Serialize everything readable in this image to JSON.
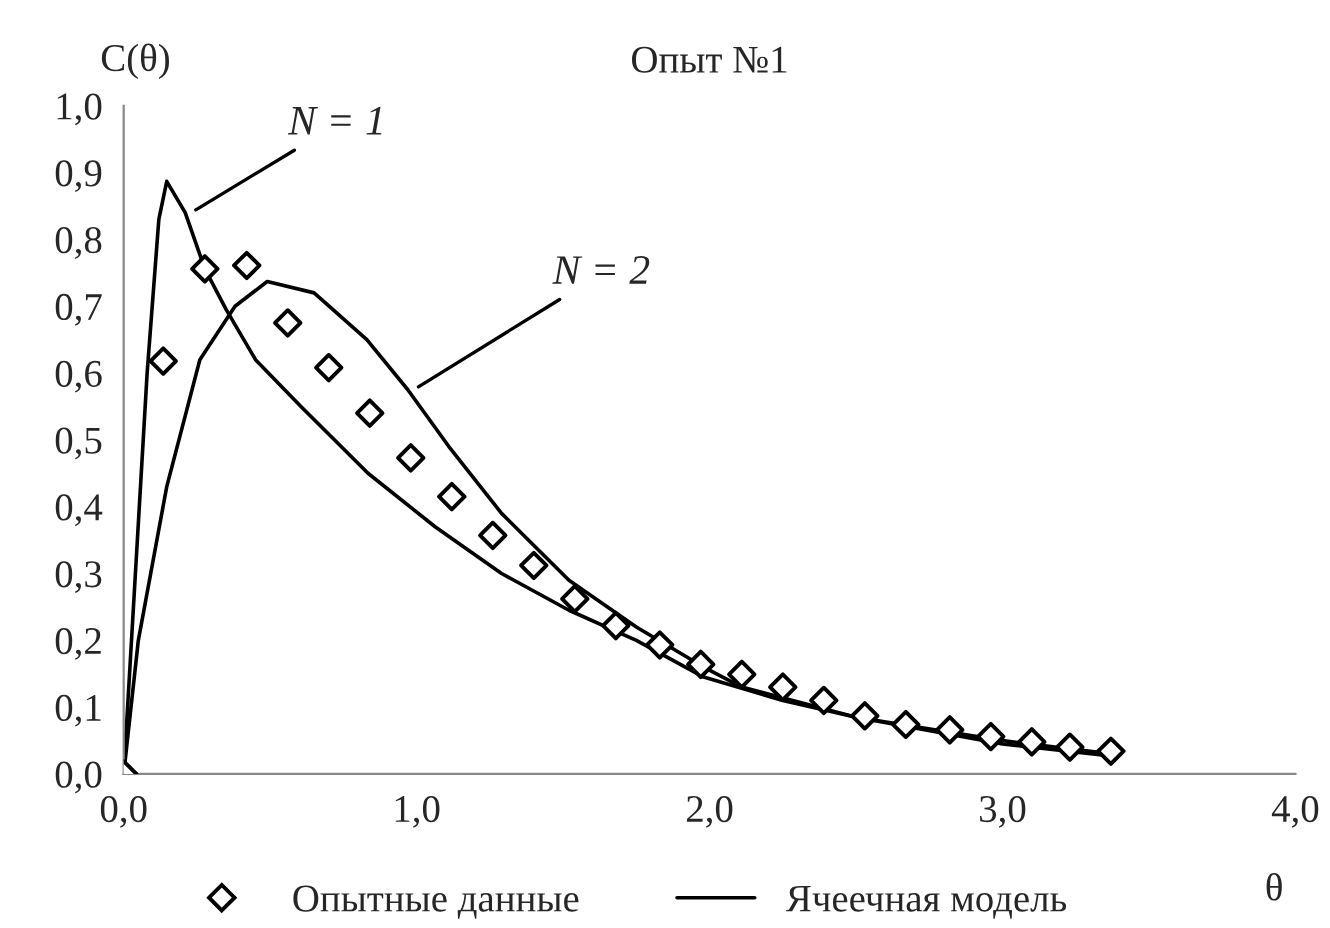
{
  "chart_data": {
    "type": "scatter",
    "title": "Опыт №1",
    "ylabel": "C(θ)",
    "xlabel": "θ",
    "series": [
      {
        "name": "Опытные данные",
        "color": "#000000",
        "marker": "diamond",
        "x": [
          0,
          0.135,
          0.277,
          0.42,
          0.56,
          0.7,
          0.84,
          0.98,
          1.12,
          1.26,
          1.4,
          1.54,
          1.68,
          1.83,
          1.97,
          2.11,
          2.25,
          2.39,
          2.53,
          2.67,
          2.82,
          2.96,
          3.1,
          3.23,
          3.37
        ],
        "values": [
          0,
          0.618,
          0.756,
          0.761,
          0.675,
          0.608,
          0.54,
          0.473,
          0.415,
          0.357,
          0.312,
          0.262,
          0.222,
          0.193,
          0.164,
          0.149,
          0.13,
          0.11,
          0.087,
          0.074,
          0.066,
          0.056,
          0.048,
          0.04,
          0.034
        ]
      },
      {
        "name": "Ячеечная модель",
        "type": "line",
        "color": "#000000",
        "marker": "none",
        "line_style": "solid",
        "x": [
          0,
          0.04,
          0.08,
          0.12,
          0.147,
          0.21,
          0.277,
          0.35,
          0.45,
          0.605,
          0.834,
          1.063,
          1.29,
          1.52,
          1.75,
          1.98,
          2.25,
          2.5,
          3.0,
          3.37
        ],
        "values": [
          0,
          0.3,
          0.6,
          0.83,
          0.887,
          0.84,
          0.756,
          0.695,
          0.62,
          0.55,
          0.45,
          0.37,
          0.3,
          0.245,
          0.2,
          0.145,
          0.11,
          0.085,
          0.045,
          0.027
        ]
      },
      {
        "type": "line",
        "color": "#000000",
        "marker": "none",
        "line_style": "solid",
        "x": [
          0,
          0.05,
          0.147,
          0.26,
          0.38,
          0.49,
          0.65,
          0.83,
          0.97,
          1.11,
          1.29,
          1.52,
          1.75,
          1.98,
          2.11,
          2.5,
          3.0,
          3.37
        ],
        "values": [
          0,
          0.2,
          0.43,
          0.62,
          0.7,
          0.737,
          0.72,
          0.65,
          0.575,
          0.49,
          0.39,
          0.29,
          0.22,
          0.16,
          0.13,
          0.085,
          0.05,
          0.03
        ]
      }
    ],
    "annotations": [
      {
        "text": "N = 1",
        "x": 0.23,
        "y": 0.84
      },
      {
        "text": "N = 2",
        "x": 0.99,
        "y": 0.575
      }
    ],
    "xlim": [
      0,
      4
    ],
    "xticks": [
      {
        "value": 0,
        "label": "0,0"
      },
      {
        "value": 1,
        "label": "1,0"
      },
      {
        "value": 2,
        "label": "2,0"
      },
      {
        "value": 3,
        "label": "3,0"
      },
      {
        "value": 4,
        "label": "4,0"
      }
    ],
    "ylim": [
      0,
      1
    ],
    "yticks": [
      {
        "value": 0,
        "label": "0,0"
      },
      {
        "value": 0.1,
        "label": "0,1"
      },
      {
        "value": 0.2,
        "label": "0,2"
      },
      {
        "value": 0.3,
        "label": "0,3"
      },
      {
        "value": 0.4,
        "label": "0,4"
      },
      {
        "value": 0.5,
        "label": "0,5"
      },
      {
        "value": 0.6,
        "label": "0,6"
      },
      {
        "value": 0.7,
        "label": "0,7"
      },
      {
        "value": 0.8,
        "label": "0,8"
      },
      {
        "value": 0.9,
        "label": "0,9"
      },
      {
        "value": 1,
        "label": "1,0"
      }
    ],
    "grid": false,
    "legend": "bottom"
  }
}
